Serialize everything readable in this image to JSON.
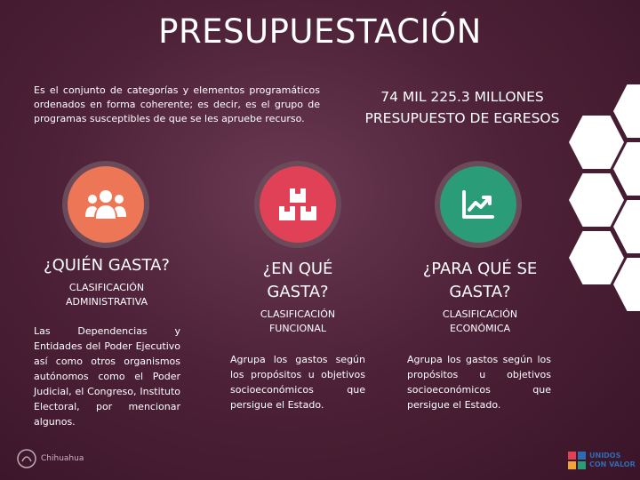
{
  "title": "PRESUPUESTACIÓN",
  "intro": "Es el conjunto de categorías y elementos programáticos ordenados en forma coherente; es decir, es el grupo de programas susceptibles de que se les apruebe recurso.",
  "budget": {
    "amount": "74 MIL 225.3 MILLONES",
    "label": "PRESUPUESTO DE EGRESOS"
  },
  "columns": [
    {
      "icon": "people-group-icon",
      "color": "#ec7655",
      "question": "¿QUIÉN GASTA?",
      "classification": "CLASIFICACIÓN ADMINISTRATIVA",
      "description": "Las Dependencias y Entidades del Poder Ejecutivo así como otros organismos autónomos como el Poder Judicial, el Congreso, Instituto Electoral, por mencionar algunos."
    },
    {
      "icon": "boxes-icon",
      "color": "#e04156",
      "question": "¿EN QUÉ GASTA?",
      "classification": "CLASIFICACIÓN FUNCIONAL",
      "description": "Agrupa los gastos según los propósitos u objetivos socioeconómicos que persigue el Estado."
    },
    {
      "icon": "trend-chart-icon",
      "color": "#2a9c78",
      "question": "¿PARA QUÉ SE GASTA?",
      "classification": "CLASIFICACIÓN ECONÓMICA",
      "description": "Agrupa los gastos según los propósitos u objetivos socioeconómicos que persigue el Estado."
    }
  ],
  "logos": {
    "left": "Chihuahua",
    "right_top": "UNIDOS",
    "right_bottom": "CON VALOR"
  }
}
